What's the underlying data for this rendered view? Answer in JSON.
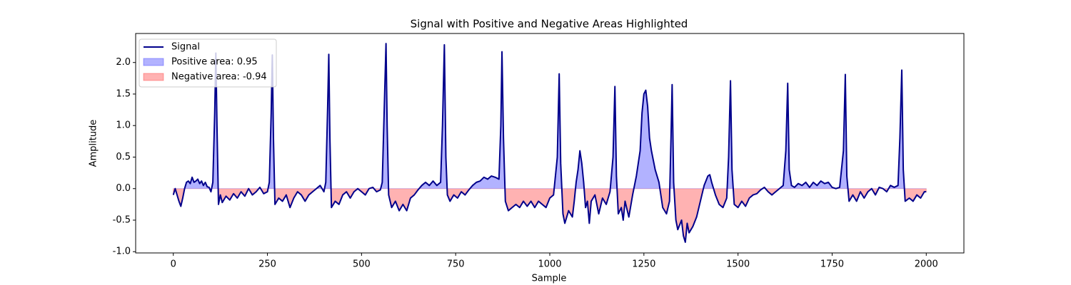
{
  "chart_data": {
    "type": "line",
    "title": "Signal with Positive and Negative Areas Highlighted",
    "xlabel": "Sample",
    "ylabel": "Amplitude",
    "xlim": [
      -100,
      2100
    ],
    "ylim": [
      -1.02,
      2.46
    ],
    "xticks": [
      0,
      250,
      500,
      750,
      1000,
      1250,
      1500,
      1750,
      2000
    ],
    "yticks": [
      {
        "value": -1.0,
        "label": "-1.0"
      },
      -0.5,
      {
        "value": 0.0,
        "label": "0.0"
      },
      0.5,
      {
        "value": 1.0,
        "label": "1.0"
      },
      1.5,
      {
        "value": 2.0,
        "label": "2.0"
      }
    ],
    "legend": "upper left",
    "series": [
      {
        "name": "Signal",
        "color": "#00008b",
        "x": [
          0,
          5,
          10,
          15,
          20,
          25,
          30,
          35,
          40,
          45,
          50,
          55,
          60,
          65,
          70,
          75,
          80,
          85,
          90,
          95,
          100,
          105,
          110,
          113,
          116,
          120,
          125,
          130,
          140,
          150,
          160,
          170,
          180,
          190,
          200,
          210,
          220,
          230,
          240,
          250,
          255,
          260,
          263,
          266,
          270,
          280,
          290,
          300,
          310,
          320,
          330,
          340,
          350,
          360,
          370,
          380,
          390,
          400,
          405,
          410,
          413,
          416,
          420,
          430,
          440,
          450,
          460,
          470,
          480,
          490,
          500,
          510,
          520,
          530,
          540,
          550,
          555,
          560,
          565,
          568,
          572,
          580,
          590,
          600,
          610,
          620,
          630,
          640,
          650,
          660,
          670,
          680,
          690,
          700,
          710,
          715,
          720,
          724,
          728,
          735,
          745,
          755,
          765,
          775,
          785,
          795,
          805,
          815,
          825,
          835,
          845,
          855,
          865,
          870,
          873,
          877,
          882,
          890,
          900,
          910,
          920,
          930,
          940,
          950,
          960,
          970,
          980,
          990,
          1000,
          1010,
          1020,
          1025,
          1029,
          1035,
          1040,
          1050,
          1060,
          1065,
          1070,
          1075,
          1080,
          1085,
          1090,
          1095,
          1100,
          1105,
          1110,
          1120,
          1130,
          1140,
          1150,
          1160,
          1168,
          1173,
          1177,
          1182,
          1190,
          1195,
          1200,
          1210,
          1220,
          1230,
          1240,
          1245,
          1250,
          1255,
          1260,
          1265,
          1270,
          1280,
          1290,
          1300,
          1310,
          1318,
          1322,
          1325,
          1329,
          1335,
          1340,
          1350,
          1355,
          1360,
          1365,
          1370,
          1380,
          1390,
          1400,
          1410,
          1420,
          1425,
          1430,
          1440,
          1450,
          1460,
          1470,
          1475,
          1480,
          1484,
          1490,
          1500,
          1510,
          1520,
          1530,
          1540,
          1550,
          1560,
          1570,
          1580,
          1590,
          1600,
          1610,
          1620,
          1627,
          1632,
          1636,
          1642,
          1650,
          1660,
          1670,
          1680,
          1690,
          1700,
          1710,
          1720,
          1730,
          1740,
          1750,
          1760,
          1770,
          1780,
          1785,
          1789,
          1795,
          1805,
          1815,
          1825,
          1835,
          1845,
          1855,
          1865,
          1875,
          1885,
          1895,
          1905,
          1915,
          1925,
          1930,
          1935,
          1939,
          1944,
          1955,
          1965,
          1975,
          1985,
          1995,
          2000
        ],
        "values": [
          -0.1,
          0,
          -0.1,
          -0.2,
          -0.28,
          -0.15,
          0,
          0.1,
          0.12,
          0.08,
          0.18,
          0.1,
          0.12,
          0.15,
          0.08,
          0.12,
          0.05,
          0.1,
          0.03,
          0.02,
          -0.05,
          0.1,
          1.2,
          2.15,
          1.0,
          -0.25,
          -0.1,
          -0.22,
          -0.12,
          -0.18,
          -0.08,
          -0.15,
          -0.05,
          -0.12,
          0,
          -0.1,
          -0.05,
          0.02,
          -0.08,
          -0.05,
          0.1,
          1.2,
          2.12,
          0.8,
          -0.25,
          -0.15,
          -0.2,
          -0.1,
          -0.3,
          -0.15,
          -0.05,
          -0.1,
          -0.2,
          -0.1,
          -0.05,
          0,
          0.05,
          -0.05,
          0.1,
          1.3,
          2.13,
          0.8,
          -0.3,
          -0.2,
          -0.25,
          -0.1,
          -0.05,
          -0.15,
          -0.05,
          0,
          -0.05,
          -0.1,
          0,
          0.02,
          -0.05,
          -0.02,
          0.1,
          1.2,
          2.3,
          1.0,
          -0.1,
          -0.3,
          -0.2,
          -0.35,
          -0.25,
          -0.35,
          -0.15,
          -0.1,
          -0.02,
          0.05,
          0.1,
          0.05,
          0.12,
          0.05,
          0.1,
          1.0,
          2.28,
          0.5,
          -0.1,
          -0.2,
          -0.1,
          -0.15,
          -0.05,
          -0.1,
          -0.02,
          0.05,
          0.1,
          0.12,
          0.18,
          0.15,
          0.2,
          0.18,
          0.15,
          1.0,
          2.17,
          0.8,
          -0.2,
          -0.35,
          -0.3,
          -0.25,
          -0.3,
          -0.2,
          -0.28,
          -0.2,
          -0.3,
          -0.2,
          -0.25,
          -0.3,
          -0.15,
          -0.1,
          0.5,
          1.82,
          0.4,
          -0.4,
          -0.55,
          -0.35,
          -0.45,
          -0.2,
          0.1,
          0.3,
          0.6,
          0.4,
          0.1,
          -0.3,
          -0.2,
          -0.55,
          -0.2,
          -0.1,
          -0.4,
          -0.15,
          -0.25,
          -0.05,
          0.5,
          1.62,
          0.2,
          -0.4,
          -0.3,
          -0.5,
          -0.2,
          -0.45,
          -0.1,
          0.2,
          0.6,
          1.2,
          1.5,
          1.56,
          1.3,
          0.8,
          0.6,
          0.3,
          0.1,
          -0.3,
          -0.4,
          -0.2,
          0.8,
          1.65,
          0.1,
          -0.5,
          -0.65,
          -0.5,
          -0.75,
          -0.85,
          -0.55,
          -0.7,
          -0.6,
          -0.45,
          -0.2,
          0.05,
          0.2,
          0.22,
          0.1,
          -0.1,
          -0.25,
          -0.3,
          -0.15,
          0.5,
          1.71,
          0.3,
          -0.25,
          -0.3,
          -0.2,
          -0.28,
          -0.15,
          -0.1,
          -0.08,
          -0.02,
          0.02,
          -0.05,
          -0.1,
          -0.05,
          0,
          0.05,
          0.6,
          1.67,
          0.3,
          0.05,
          0.02,
          0.08,
          0.05,
          0.1,
          0.02,
          0.1,
          0.05,
          0.12,
          0.08,
          0.1,
          0.02,
          0,
          0.02,
          0.6,
          1.81,
          0.2,
          -0.2,
          -0.1,
          -0.2,
          -0.05,
          -0.15,
          -0.05,
          0,
          -0.1,
          0.02,
          0,
          -0.05,
          0.05,
          0.02,
          0.05,
          0.8,
          1.88,
          0.3,
          -0.2,
          -0.15,
          -0.2,
          -0.1,
          -0.15,
          -0.05,
          -0.05
        ]
      }
    ],
    "fills": [
      {
        "name": "Positive area: 0.95",
        "color": "#0000ff",
        "side": "positive"
      },
      {
        "name": "Negative area: -0.94",
        "color": "#ff0000",
        "side": "negative"
      }
    ]
  }
}
